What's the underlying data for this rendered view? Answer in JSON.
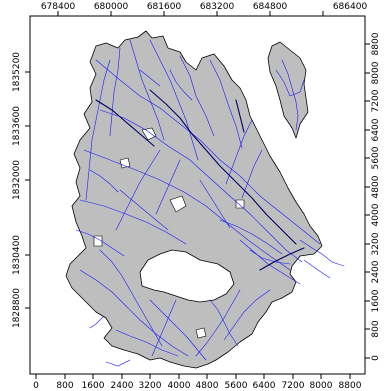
{
  "map": {
    "top_axis_ticks": [
      "678400",
      "680000",
      "681600",
      "683200",
      "684800",
      "686400"
    ],
    "left_axis_ticks": [
      "1835200",
      "1833600",
      "1832000",
      "1830400",
      "1828800"
    ],
    "bottom_axis_ticks": [
      "0",
      "800",
      "1600",
      "2400",
      "3200",
      "4000",
      "4800",
      "5600",
      "6400",
      "7200",
      "8000",
      "8800"
    ],
    "right_axis_ticks": [
      "8800",
      "8000",
      "7200",
      "6400",
      "5600",
      "4800",
      "4000",
      "3200",
      "2400",
      "1600",
      "800",
      "0"
    ],
    "colors": {
      "region_fill": "#bebebe",
      "region_outline": "#000000",
      "network": "#1a1aff",
      "frame": "#000000"
    }
  }
}
